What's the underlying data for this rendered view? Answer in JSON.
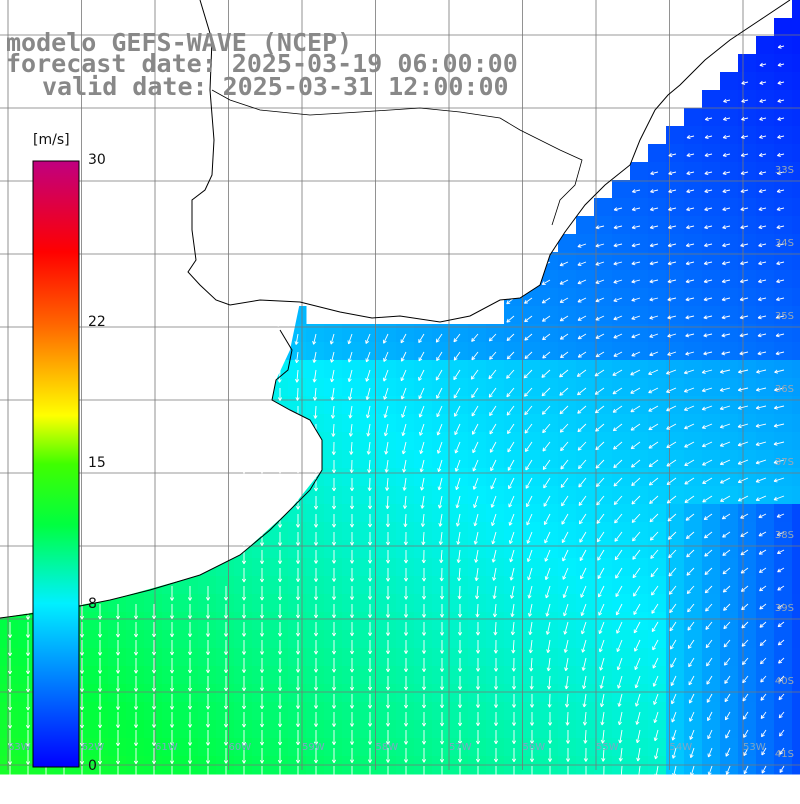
{
  "title": {
    "line1": "modelo GEFS-WAVE (NCEP)",
    "line2": "forecast date: 2025-03-19 06:00:00",
    "line3": "valid date: 2025-03-31 12:00:00"
  },
  "colorbar": {
    "units": "[m/s]",
    "ticks": [
      {
        "value": 30,
        "label": "30"
      },
      {
        "value": 22,
        "label": "22"
      },
      {
        "value": 15,
        "label": "15"
      },
      {
        "value": 8,
        "label": "8"
      },
      {
        "value": 0,
        "label": "0"
      }
    ],
    "range": [
      0,
      30
    ]
  },
  "map": {
    "lat_labels": [
      {
        "lat": -33,
        "label": "33S"
      },
      {
        "lat": -34,
        "label": "34S"
      },
      {
        "lat": -35,
        "label": "35S"
      },
      {
        "lat": -36,
        "label": "36S"
      },
      {
        "lat": -37,
        "label": "37S"
      },
      {
        "lat": -38,
        "label": "38S"
      },
      {
        "lat": -39,
        "label": "39S"
      },
      {
        "lat": -40,
        "label": "40S"
      },
      {
        "lat": -41,
        "label": "41S"
      }
    ],
    "lon_labels": [
      {
        "lon": -63,
        "label": "63W"
      },
      {
        "lon": -62,
        "label": "62W"
      },
      {
        "lon": -61,
        "label": "61W"
      },
      {
        "lon": -60,
        "label": "60W"
      },
      {
        "lon": -59,
        "label": "59W"
      },
      {
        "lon": -58,
        "label": "58W"
      },
      {
        "lon": -57,
        "label": "57W"
      },
      {
        "lon": -56,
        "label": "56W"
      },
      {
        "lon": -55,
        "label": "55W"
      },
      {
        "lon": -54,
        "label": "54W"
      },
      {
        "lon": -53,
        "label": "53W"
      }
    ],
    "wind_field": {
      "description_regions": [
        {
          "region": "south-west shelf",
          "speed_ms": 11,
          "direction": "south"
        },
        {
          "region": "central",
          "speed_ms": 8,
          "direction": "south-west"
        },
        {
          "region": "north-east offshore",
          "speed_ms": 6,
          "direction": "west"
        },
        {
          "region": "south-east",
          "speed_ms": 3,
          "direction": "south-west"
        }
      ]
    }
  }
}
